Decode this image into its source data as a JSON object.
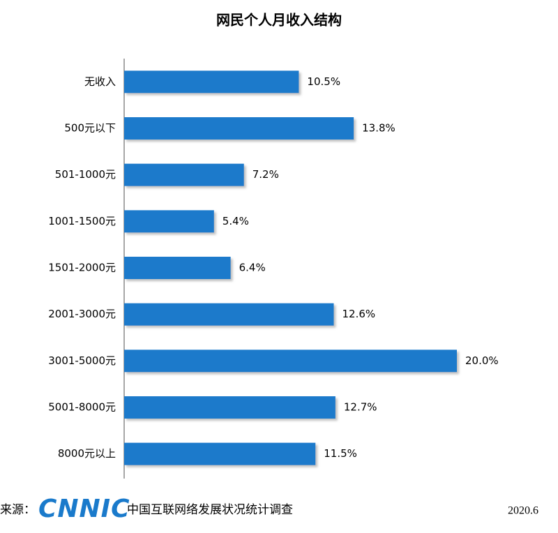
{
  "chart_data": {
    "type": "bar",
    "orientation": "horizontal",
    "title": "网民个人月收入结构",
    "categories": [
      "无收入",
      "500元以下",
      "501-1000元",
      "1001-1500元",
      "1501-2000元",
      "2001-3000元",
      "3001-5000元",
      "5001-8000元",
      "8000元以上"
    ],
    "values": [
      10.5,
      13.8,
      7.2,
      5.4,
      6.4,
      12.6,
      20.0,
      12.7,
      11.5
    ],
    "value_labels": [
      "10.5%",
      "13.8%",
      "7.2%",
      "5.4%",
      "6.4%",
      "12.6%",
      "20.0%",
      "12.7%",
      "11.5%"
    ],
    "color": "#1a7acb"
  },
  "footer": {
    "source_label": "来源：",
    "logo": "CNNIC",
    "source": "中国互联网络发展状况统计调查",
    "date": "2020.6"
  }
}
